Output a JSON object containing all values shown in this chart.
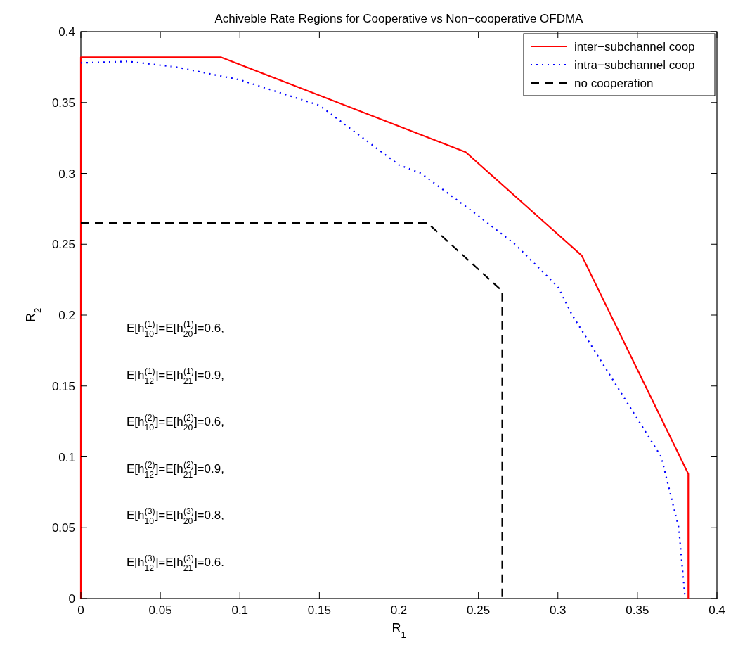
{
  "chart_data": {
    "type": "line",
    "title": "Achiveble Rate Regions for Cooperative vs Non−cooperative OFDMA",
    "xlabel": "R$_{1}$",
    "ylabel": "R$_{2}$",
    "xlim": [
      0,
      0.4
    ],
    "ylim": [
      0,
      0.4
    ],
    "xticks": [
      0,
      0.05,
      0.1,
      0.15,
      0.2,
      0.25,
      0.3,
      0.35,
      0.4
    ],
    "yticks": [
      0,
      0.05,
      0.1,
      0.15,
      0.2,
      0.25,
      0.3,
      0.35,
      0.4
    ],
    "grid": false,
    "legend": "top right",
    "marker": "none",
    "series": [
      {
        "name": "inter−subchannel coop",
        "color": "#ff0000",
        "line_style": "solid",
        "x": [
          0,
          0,
          0.088,
          0.242,
          0.315,
          0.382,
          0.382
        ],
        "values": [
          0,
          0.382,
          0.382,
          0.315,
          0.242,
          0.088,
          0
        ]
      },
      {
        "name": "intra−subchannel coop",
        "color": "#0000ff",
        "line_style": "dotted",
        "x": [
          0,
          0.03,
          0.06,
          0.1,
          0.15,
          0.2,
          0.214,
          0.25,
          0.273,
          0.3,
          0.309,
          0.337,
          0.365,
          0.376,
          0.38
        ],
        "values": [
          0.378,
          0.379,
          0.375,
          0.366,
          0.348,
          0.306,
          0.3,
          0.27,
          0.25,
          0.22,
          0.2,
          0.15,
          0.1,
          0.05,
          0
        ]
      },
      {
        "name": "no cooperation",
        "color": "#000000",
        "line_style": "dashed",
        "x": [
          0,
          0.218,
          0.265,
          0.265
        ],
        "values": [
          0.265,
          0.265,
          0.217,
          0
        ]
      }
    ],
    "annotations": [
      "E[h$_{10}$$^{(1)}$]=E[h$_{20}$$^{(1)}$]=0.6,",
      "E[h$_{12}$$^{(1)}$]=E[h$_{21}$$^{(1)}$]=0.9,",
      "E[h$_{10}$$^{(2)}$]=E[h$_{20}$$^{(2)}$]=0.6,",
      "E[h$_{12}$$^{(2)}$]=E[h$_{21}$$^{(2)}$]=0.9,",
      "E[h$_{10}$$^{(3)}$]=E[h$_{20}$$^{(3)}$]=0.8,",
      "E[h$_{12}$$^{(3)}$]=E[h$_{21}$$^{(3)}$]=0.6."
    ]
  }
}
